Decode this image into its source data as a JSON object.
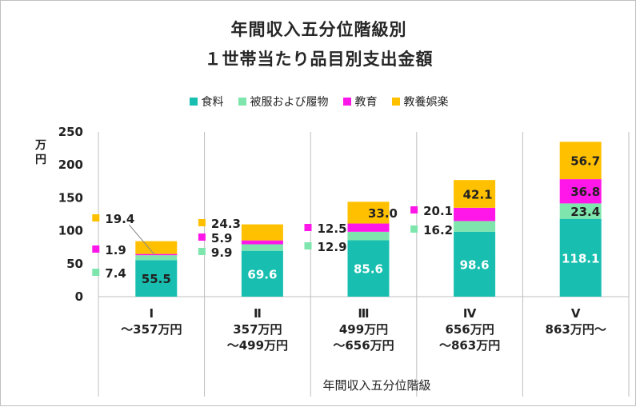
{
  "title_line1": "年間収入五分位階級別",
  "title_line2": "１世帯当たり品目別支出金額",
  "y_unit": "万円",
  "x_axis_title": "年間収入五分位階級",
  "legend": [
    {
      "name": "食料",
      "color": "#18bfb0"
    },
    {
      "name": "被服および履物",
      "color": "#7ee6ad"
    },
    {
      "name": "教育",
      "color": "#ff16e8"
    },
    {
      "name": "教養娯楽",
      "color": "#ffc000"
    }
  ],
  "chart_data": {
    "type": "bar",
    "stacked": true,
    "title": "年間収入五分位階級別 １世帯当たり品目別支出金額",
    "xlabel": "年間収入五分位階級",
    "ylabel": "万円",
    "ylim": [
      0,
      250
    ],
    "yticks": [
      0,
      50,
      100,
      150,
      200,
      250
    ],
    "grid": false,
    "legend_position": "top",
    "categories": [
      [
        "Ⅰ",
        "～357万円"
      ],
      [
        "Ⅱ",
        "357万円",
        "～499万円"
      ],
      [
        "Ⅲ",
        "499万円",
        "～656万円"
      ],
      [
        "Ⅳ",
        "656万円",
        "～863万円"
      ],
      [
        "Ⅴ",
        "863万円～"
      ]
    ],
    "series": [
      {
        "name": "食料",
        "color": "#18bfb0",
        "values": [
          55.5,
          69.6,
          85.6,
          98.6,
          118.1
        ]
      },
      {
        "name": "被服および履物",
        "color": "#7ee6ad",
        "values": [
          7.4,
          9.9,
          12.9,
          16.2,
          23.4
        ]
      },
      {
        "name": "教育",
        "color": "#ff16e8",
        "values": [
          1.9,
          5.9,
          12.5,
          20.1,
          36.8
        ]
      },
      {
        "name": "教養娯楽",
        "color": "#ffc000",
        "values": [
          19.4,
          24.3,
          33.0,
          42.1,
          56.7
        ]
      }
    ]
  }
}
